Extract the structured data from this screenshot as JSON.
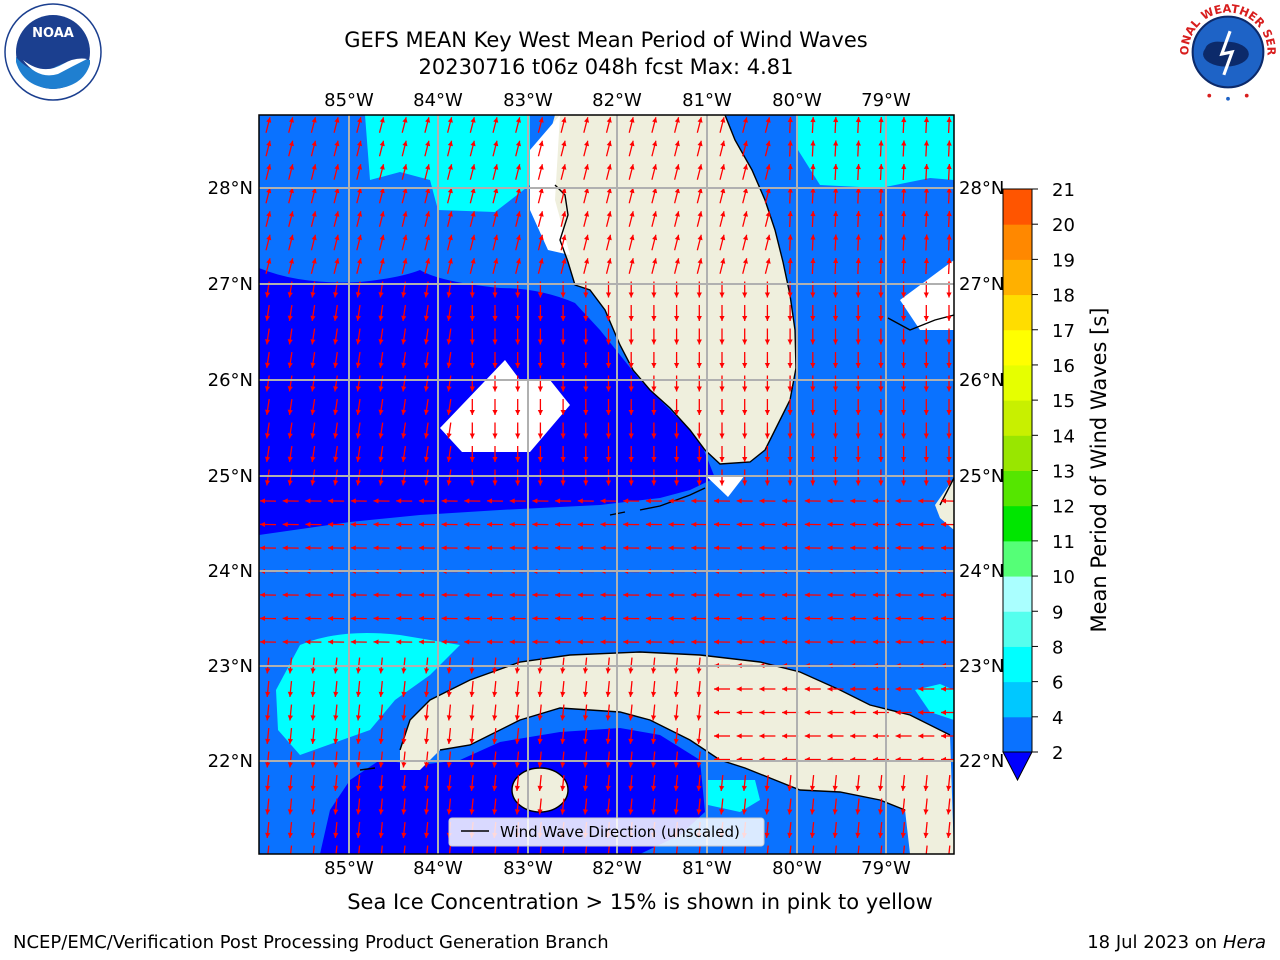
{
  "title": {
    "line1": "GEFS MEAN Key West Mean Period of Wind Waves",
    "line2": "20230716 t06z 048h fcst   Max: 4.81"
  },
  "logos": {
    "left_text": "NOAA",
    "right_text": "NATIONAL WEATHER SERVICE"
  },
  "axes": {
    "lon_labels": [
      "85°W",
      "84°W",
      "83°W",
      "82°W",
      "81°W",
      "80°W",
      "79°W"
    ],
    "lat_labels": [
      "28°N",
      "27°N",
      "26°N",
      "25°N",
      "24°N",
      "23°N",
      "22°N"
    ]
  },
  "legend": {
    "label": "Wind Wave Direction (unscaled)"
  },
  "colorbar": {
    "label": "Mean Period of Wind Waves [s]",
    "ticks": [
      "2",
      "4",
      "6",
      "8",
      "9",
      "10",
      "11",
      "12",
      "13",
      "14",
      "15",
      "16",
      "17",
      "18",
      "19",
      "20",
      "21"
    ],
    "colors": [
      "#0a72ff",
      "#00c8ff",
      "#00ffff",
      "#55ffee",
      "#aaffff",
      "#55ff77",
      "#00e600",
      "#55e600",
      "#99e600",
      "#c8f000",
      "#e6ff00",
      "#ffff00",
      "#ffdd00",
      "#ffb000",
      "#ff8800",
      "#ff5500",
      "#ff2200",
      "#ff0000"
    ],
    "under_color": "#0000ff"
  },
  "map_colors": {
    "land": "#efefdd",
    "level_below_2": "#0000ff",
    "level_2_4": "#0a72ff",
    "level_4_6": "#00ffff",
    "arrow": "#ff0000",
    "grid": "#b0b0b0"
  },
  "captions": {
    "sea_ice": "Sea Ice Concentration > 15% is shown in pink to yellow"
  },
  "footer": {
    "left": "NCEP/EMC/Verification Post Processing Product Generation Branch",
    "right_prefix": "18 Jul 2023 on ",
    "right_machine": "Hera"
  }
}
